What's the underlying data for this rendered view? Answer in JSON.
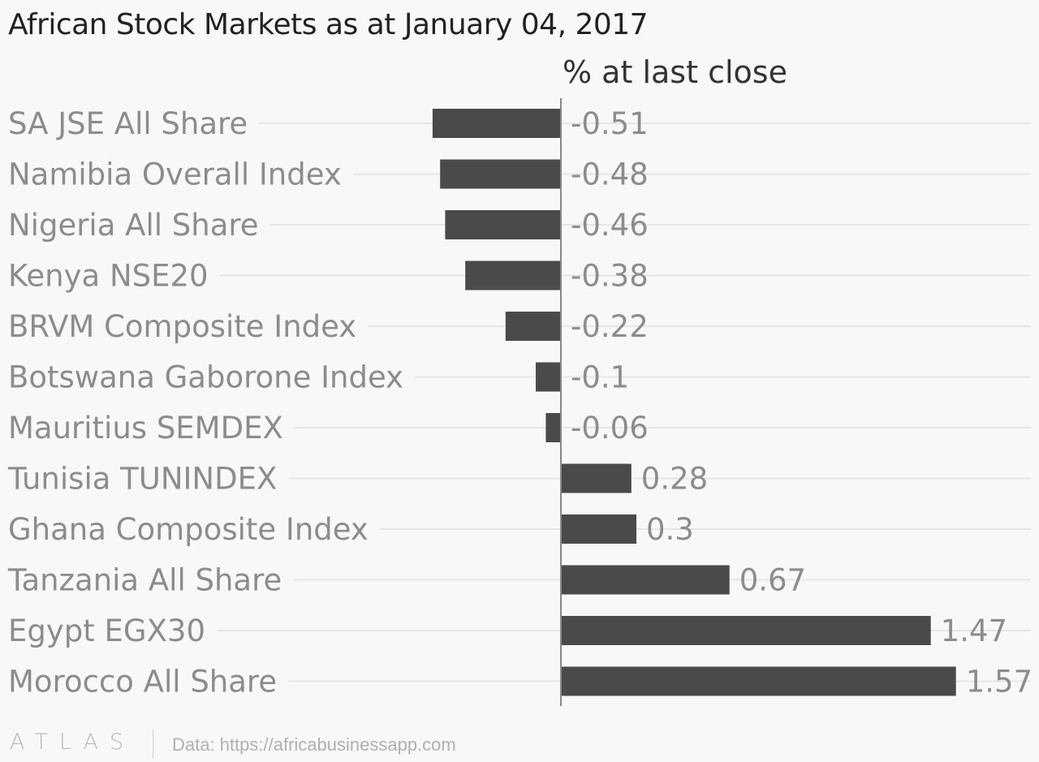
{
  "chart_data": {
    "type": "bar",
    "orientation": "horizontal",
    "title": "African Stock Markets as at January 04, 2017",
    "value_axis_label": "% at last close",
    "categories": [
      "SA JSE All Share",
      "Namibia Overall Index",
      "Nigeria All Share",
      "Kenya NSE20",
      "BRVM Composite Index",
      "Botswana Gaborone Index",
      "Mauritius SEMDEX",
      "Tunisia TUNINDEX",
      "Ghana Composite Index",
      "Tanzania All Share",
      "Egypt EGX30",
      "Morocco All Share"
    ],
    "values": [
      -0.51,
      -0.48,
      -0.46,
      -0.38,
      -0.22,
      -0.1,
      -0.06,
      0.28,
      0.3,
      0.67,
      1.47,
      1.57
    ],
    "value_labels": [
      "-0.51",
      "-0.48",
      "-0.46",
      "-0.38",
      "-0.22",
      "-0.1",
      "-0.06",
      "0.28",
      "0.3",
      "0.67",
      "1.47",
      "1.57"
    ],
    "xlim": [
      -0.51,
      1.57
    ],
    "grid": true,
    "legend": "none",
    "colors": {
      "bar": "#4a4a4a",
      "category_label": "#8c8c8c",
      "value_label": "#8c8c8c",
      "gridline": "#e6e6e6",
      "zero_line": "#888888",
      "axis_label": "#333333"
    }
  },
  "footer": {
    "logo_text": "ATLAS",
    "source": "Data: https://africabusinessapp.com"
  }
}
